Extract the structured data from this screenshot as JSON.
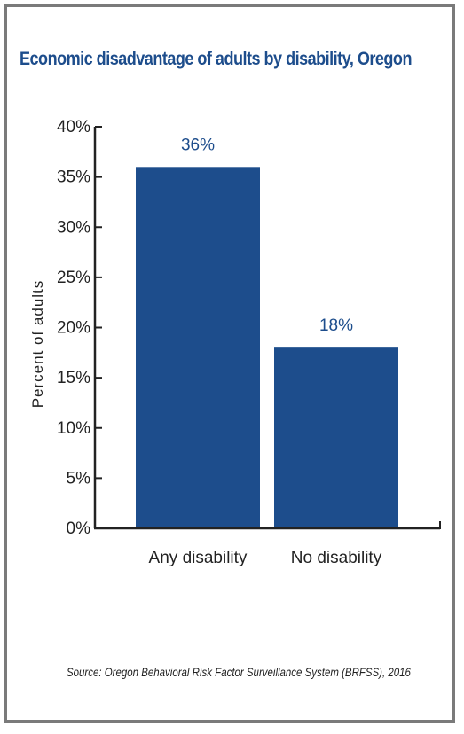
{
  "chart_data": {
    "type": "bar",
    "title": "Economic disadvantage of adults by disability, Oregon",
    "xlabel": "",
    "ylabel": "Percent of adults",
    "categories": [
      "Any disability",
      "No disability"
    ],
    "values": [
      36,
      18
    ],
    "data_labels": [
      "36%",
      "18%"
    ],
    "ylim": [
      0,
      40
    ],
    "yticks": [
      0,
      5,
      10,
      15,
      20,
      25,
      30,
      35,
      40
    ],
    "ytick_labels": [
      "0%",
      "5%",
      "10%",
      "15%",
      "20%",
      "25%",
      "30%",
      "35%",
      "40%"
    ],
    "bar_color": "#1d4d8c",
    "title_color": "#1d4d8c",
    "grid": false,
    "source": "Source: Oregon Behavioral Risk Factor Surveillance System (BRFSS), 2016"
  }
}
